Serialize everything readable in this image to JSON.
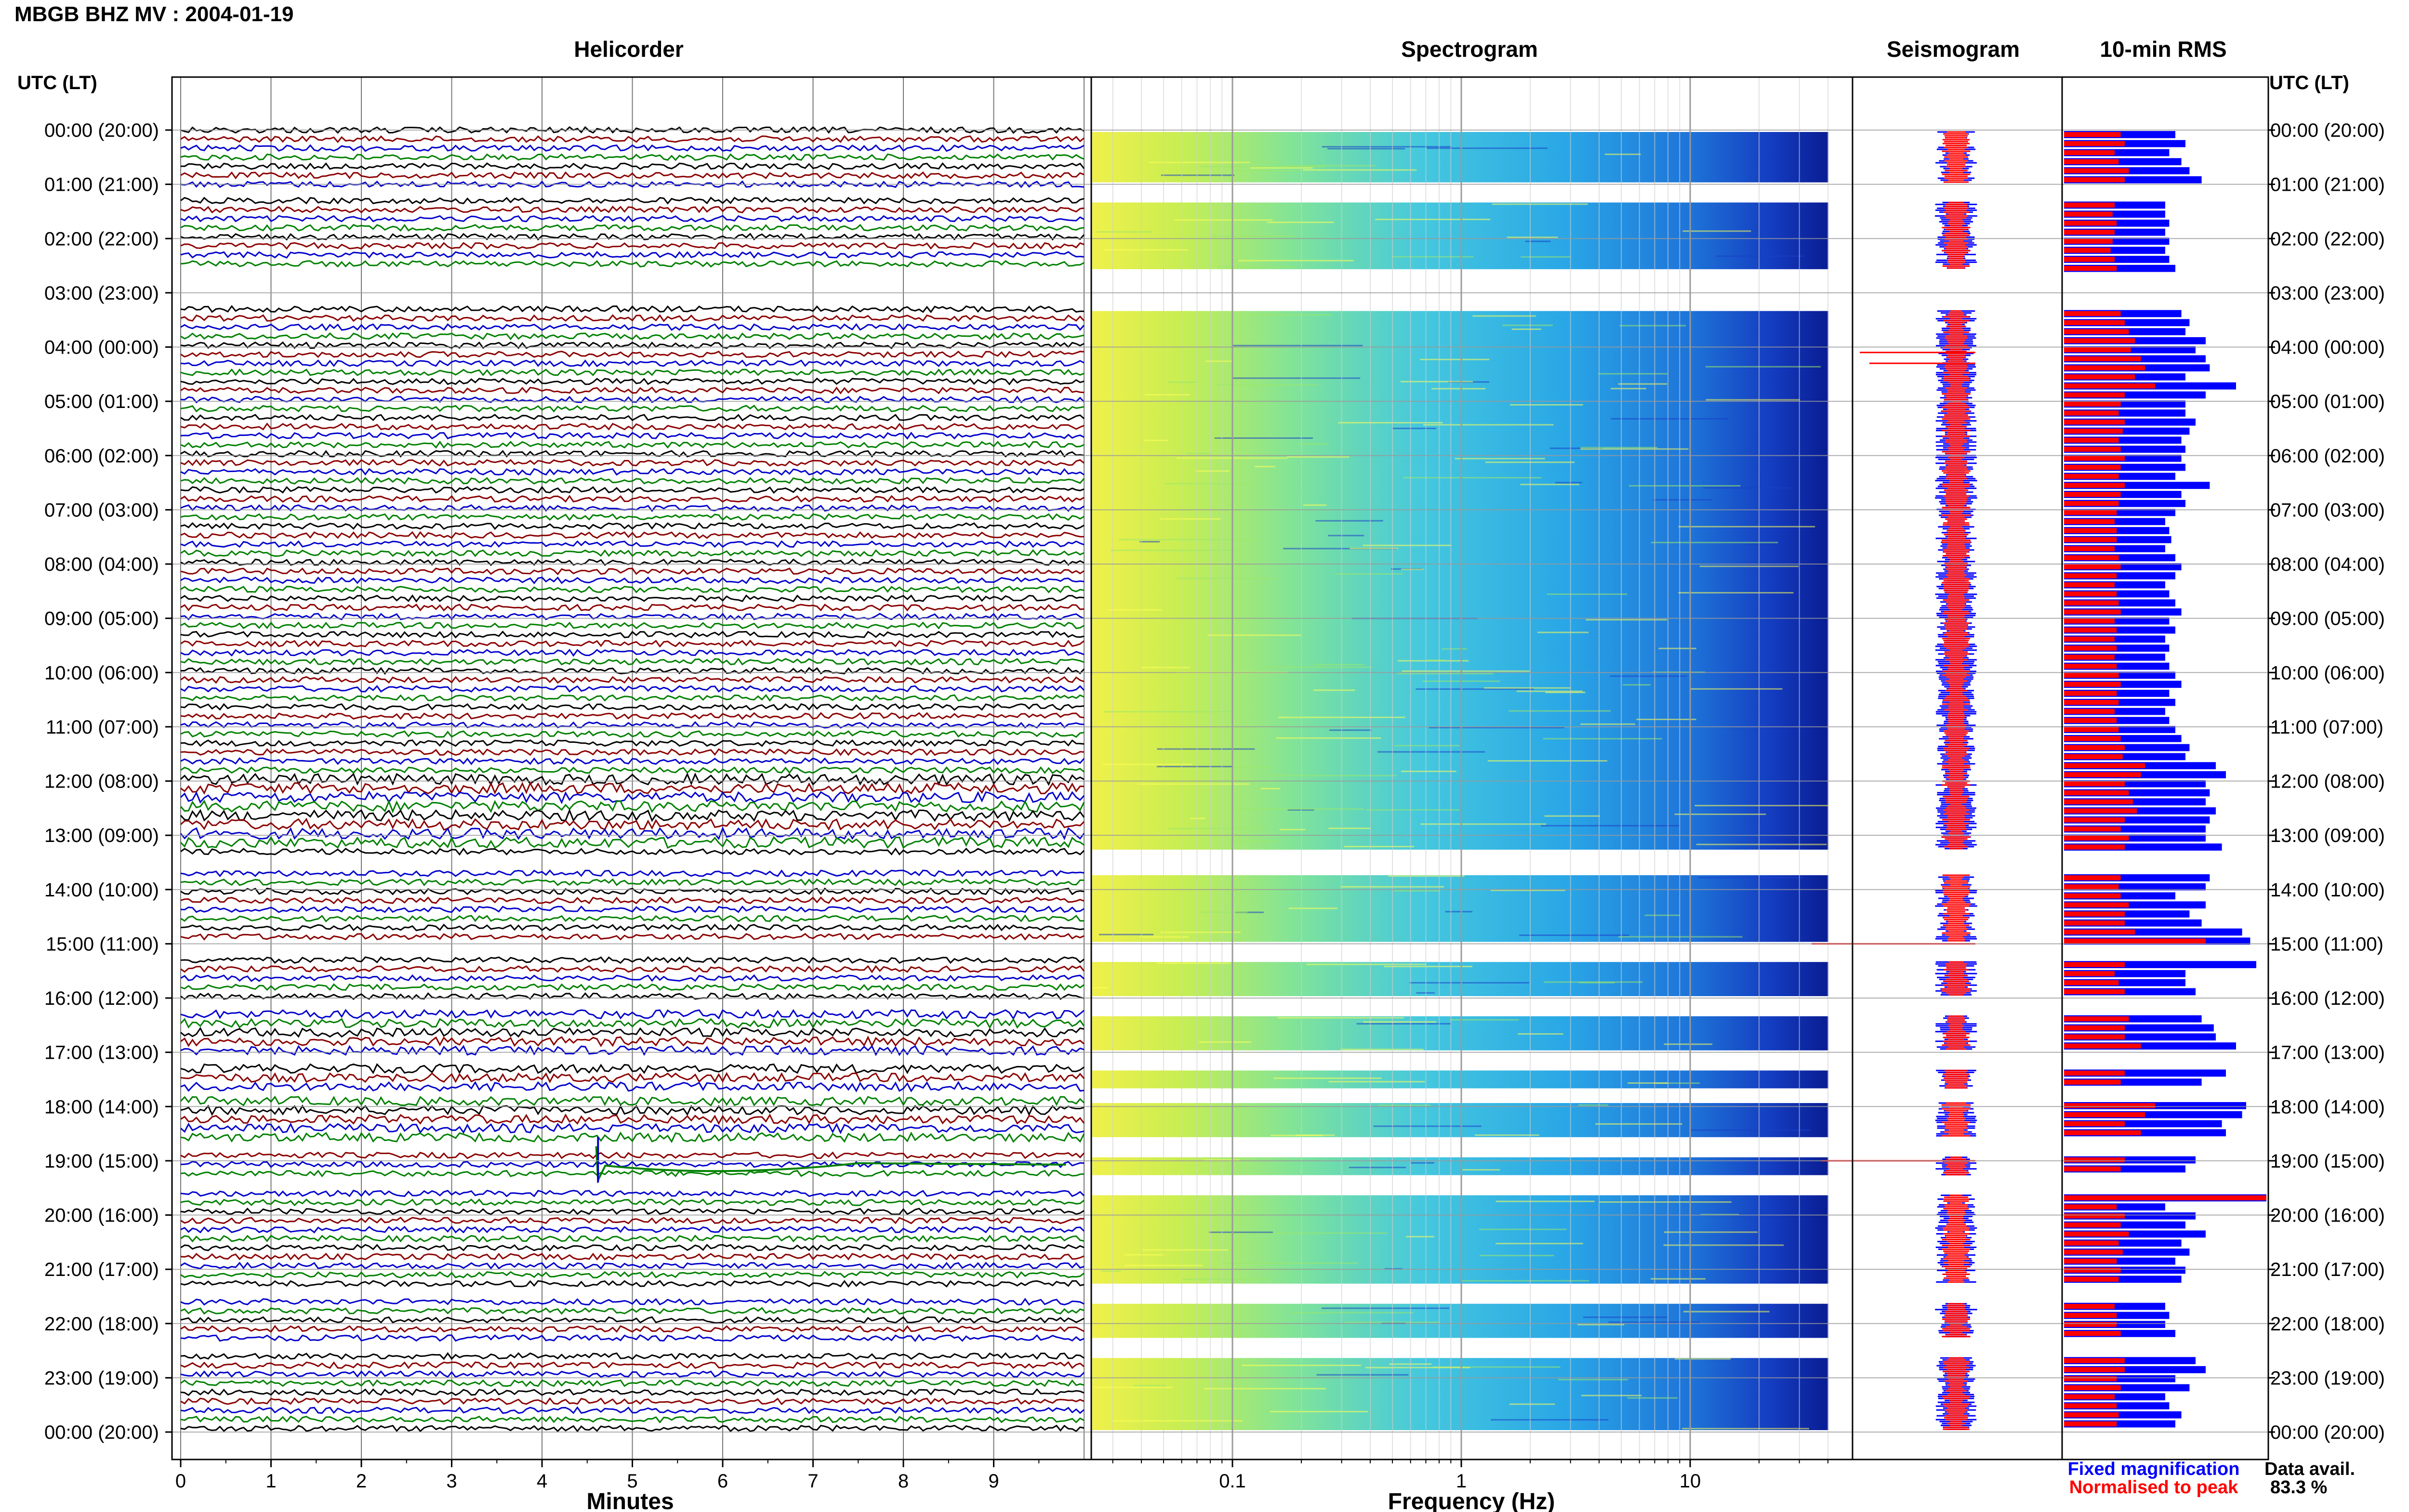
{
  "header": {
    "station_title": "MBGB BHZ MV : 2004-01-19",
    "time_axis_label": "UTC (LT)",
    "data_avail_label": "Data avail.",
    "data_avail_value": "83.3 %"
  },
  "panels": {
    "helicorder": "Helicorder",
    "spectrogram": "Spectrogram",
    "seismogram": "Seismogram",
    "rms": "10-min RMS"
  },
  "legend": {
    "fixed": "Fixed magnification",
    "normalised": "Normalised to peak"
  },
  "colors": {
    "trace_cycle": [
      "#000000",
      "#8b0000",
      "#0000cd",
      "#008000"
    ],
    "fixed": "#0000ff",
    "normalised": "#ff0000",
    "spectrogram_low": "#00008b",
    "spectrogram_high": "#ffff00"
  },
  "chart_data": {
    "type": "heatmap",
    "hour_labels": [
      "00:00 (20:00)",
      "01:00 (21:00)",
      "02:00 (22:00)",
      "03:00 (23:00)",
      "04:00 (00:00)",
      "05:00 (01:00)",
      "06:00 (02:00)",
      "07:00 (03:00)",
      "08:00 (04:00)",
      "09:00 (05:00)",
      "10:00 (06:00)",
      "11:00 (07:00)",
      "12:00 (08:00)",
      "13:00 (09:00)",
      "14:00 (10:00)",
      "15:00 (11:00)",
      "16:00 (12:00)",
      "17:00 (13:00)",
      "18:00 (14:00)",
      "19:00 (15:00)",
      "20:00 (16:00)",
      "21:00 (17:00)",
      "22:00 (18:00)",
      "23:00 (19:00)",
      "00:00 (20:00)"
    ],
    "time_range_hours": [
      0,
      24
    ],
    "data_segments_hours": [
      [
        0.0,
        1.0
      ],
      [
        1.3,
        2.6
      ],
      [
        3.3,
        13.3
      ],
      [
        13.7,
        15.0
      ],
      [
        15.3,
        16.0
      ],
      [
        16.3,
        17.0
      ],
      [
        17.3,
        17.7
      ],
      [
        17.9,
        18.6
      ],
      [
        18.9,
        19.3
      ],
      [
        19.6,
        21.3
      ],
      [
        21.6,
        22.3
      ],
      [
        22.6,
        24.0
      ]
    ],
    "helicorder": {
      "xlabel": "Minutes",
      "xlim": [
        0,
        10
      ],
      "xticks": [
        0,
        1,
        2,
        3,
        4,
        5,
        6,
        7,
        8,
        9
      ],
      "lines_per_hour": 6
    },
    "spectrogram": {
      "xlabel": "Frequency (Hz)",
      "scale": "log",
      "xlim": [
        0.02,
        50
      ],
      "xticks": [
        0.1,
        1,
        10
      ],
      "xtick_labels": [
        "0.1",
        "1",
        "10"
      ]
    },
    "rms": {
      "series": [
        {
          "name": "Fixed magnification",
          "color": "#0000ff"
        },
        {
          "name": "Normalised to peak",
          "color": "#ff0000"
        }
      ],
      "xlim": [
        0,
        1
      ],
      "fixed_values": [
        0.55,
        0.6,
        0.52,
        0.58,
        0.62,
        0.68,
        0.5,
        0.5,
        0.52,
        0.5,
        0.52,
        0.5,
        0.52,
        0.55,
        0.58,
        0.62,
        0.6,
        0.7,
        0.65,
        0.7,
        0.72,
        0.6,
        0.85,
        0.7,
        0.6,
        0.6,
        0.65,
        0.62,
        0.58,
        0.6,
        0.58,
        0.6,
        0.55,
        0.72,
        0.58,
        0.6,
        0.55,
        0.5,
        0.52,
        0.53,
        0.5,
        0.55,
        0.58,
        0.55,
        0.5,
        0.52,
        0.55,
        0.58,
        0.52,
        0.55,
        0.5,
        0.52,
        0.5,
        0.52,
        0.55,
        0.58,
        0.52,
        0.55,
        0.5,
        0.52,
        0.55,
        0.58,
        0.62,
        0.6,
        0.75,
        0.8,
        0.7,
        0.72,
        0.7,
        0.75,
        0.72,
        0.7,
        0.7,
        0.78,
        0.72,
        0.7,
        0.55,
        0.7,
        0.62,
        0.68,
        0.88,
        0.92,
        0.95,
        0.6,
        0.6,
        0.65,
        0.68,
        0.74,
        0.75,
        0.85,
        0.8,
        0.68,
        0.9,
        0.88,
        0.78,
        0.8,
        0.65,
        0.6,
        1.0,
        0.5,
        0.65,
        0.6,
        0.7,
        0.58,
        0.62,
        0.55,
        0.6,
        0.58,
        0.5,
        0.52,
        0.5,
        0.55,
        0.65,
        0.7,
        0.55,
        0.62,
        0.5,
        0.52,
        0.58,
        0.55,
        0.5,
        0.52
      ],
      "normalised_values": [
        0.28,
        0.3,
        0.25,
        0.27,
        0.32,
        0.3,
        0.25,
        0.24,
        0.26,
        0.25,
        0.24,
        0.23,
        0.25,
        0.26,
        0.28,
        0.3,
        0.32,
        0.35,
        0.33,
        0.38,
        0.4,
        0.35,
        0.45,
        0.3,
        0.28,
        0.27,
        0.3,
        0.29,
        0.27,
        0.28,
        0.3,
        0.28,
        0.27,
        0.3,
        0.28,
        0.27,
        0.26,
        0.25,
        0.26,
        0.26,
        0.25,
        0.27,
        0.28,
        0.26,
        0.25,
        0.26,
        0.27,
        0.28,
        0.25,
        0.26,
        0.25,
        0.26,
        0.25,
        0.26,
        0.27,
        0.28,
        0.26,
        0.27,
        0.25,
        0.26,
        0.27,
        0.28,
        0.3,
        0.29,
        0.4,
        0.38,
        0.3,
        0.32,
        0.34,
        0.36,
        0.3,
        0.28,
        0.32,
        0.3,
        0.28,
        0.27,
        0.28,
        0.32,
        0.3,
        0.3,
        0.35,
        0.7,
        0.3,
        0.25,
        0.27,
        0.3,
        0.32,
        0.3,
        0.3,
        0.38,
        0.3,
        0.28,
        0.45,
        0.4,
        0.3,
        0.38,
        0.3,
        0.28,
        1.0,
        0.26,
        0.3,
        0.28,
        0.32,
        0.27,
        0.29,
        0.26,
        0.28,
        0.27,
        0.25,
        0.26,
        0.26,
        0.28,
        0.3,
        0.3,
        0.26,
        0.28,
        0.25,
        0.26,
        0.27,
        0.26,
        0.25,
        0.26
      ]
    }
  }
}
